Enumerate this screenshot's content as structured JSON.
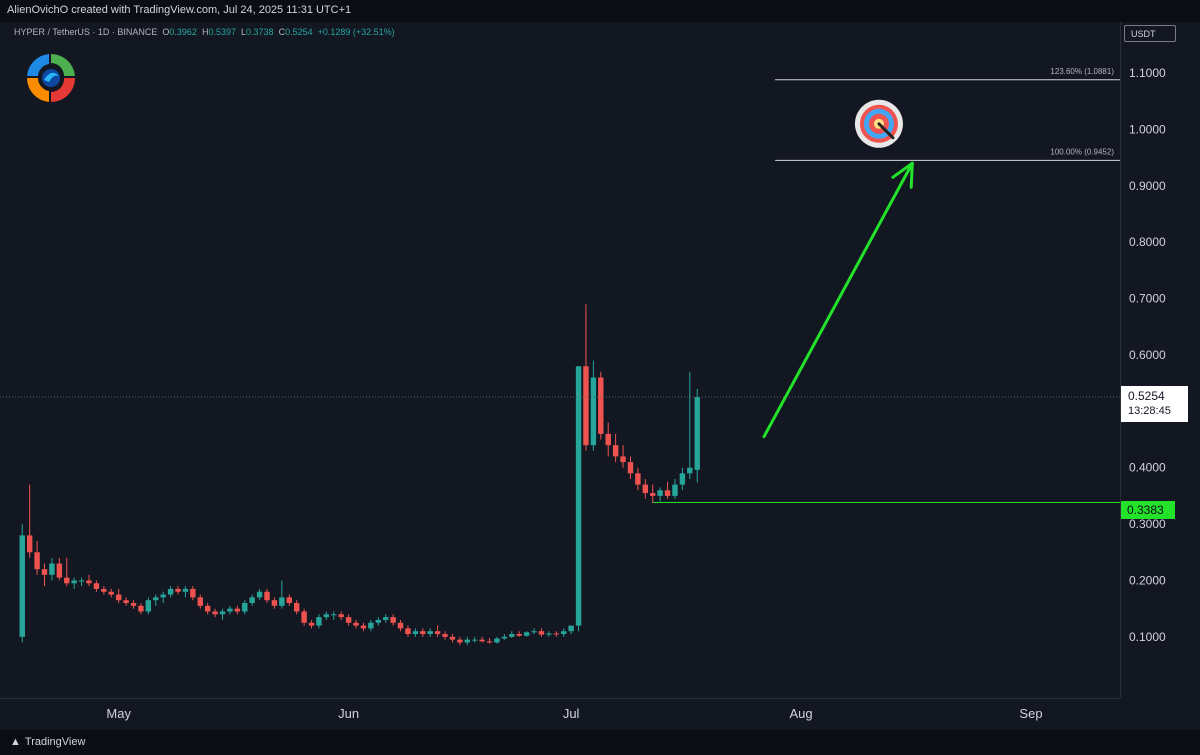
{
  "header": {
    "credit": "AlienOvichO created with TradingView.com, Jul 24, 2025 11:31 UTC+1",
    "symbol_line": "HYPER / TetherUS · 1D · BINANCE",
    "open_label": "O",
    "open": "0.3962",
    "high_label": "H",
    "high": "0.5397",
    "low_label": "L",
    "low": "0.3738",
    "close_label": "C",
    "close": "0.5254",
    "change": "+0.1289 (+32.51%)"
  },
  "price_axis": {
    "currency": "USDT",
    "last_price": "0.5254",
    "countdown": "13:28:45",
    "support_price": "0.3383"
  },
  "footer": {
    "brand": "TradingView"
  },
  "colors": {
    "up": "#26a69a",
    "down": "#ef5350",
    "arrow": "#22e22a",
    "support": "#22e22a",
    "background": "#131722"
  },
  "chart_data": {
    "type": "candlestick",
    "y_ticks": [
      "1.1000",
      "1.0000",
      "0.9000",
      "0.8000",
      "0.7000",
      "0.6000",
      "0.5000",
      "0.4000",
      "0.3000",
      "0.2000",
      "0.1000"
    ],
    "ylim": [
      0.027,
      1.148
    ],
    "x_ticks": [
      {
        "label": "May",
        "day": 13
      },
      {
        "label": "Jun",
        "day": 44
      },
      {
        "label": "Jul",
        "day": 74
      },
      {
        "label": "Aug",
        "day": 105
      },
      {
        "label": "Sep",
        "day": 136
      }
    ],
    "x_range_days": [
      -3,
      148
    ],
    "fib_levels": [
      {
        "label": "123.60% (1.0881)",
        "price": 1.0881
      },
      {
        "label": "100.00% (0.9452)",
        "price": 0.9452
      }
    ],
    "support_level": 0.3383,
    "last_price_level": 0.5254,
    "projection_arrow": {
      "from": {
        "day": 100,
        "price": 0.455
      },
      "to": {
        "day": 120,
        "price": 0.94
      }
    },
    "target_icon": "bullseye-icon",
    "candles": [
      {
        "o": 0.1,
        "h": 0.3,
        "l": 0.09,
        "c": 0.28
      },
      {
        "o": 0.28,
        "h": 0.37,
        "l": 0.24,
        "c": 0.25
      },
      {
        "o": 0.25,
        "h": 0.27,
        "l": 0.21,
        "c": 0.22
      },
      {
        "o": 0.22,
        "h": 0.23,
        "l": 0.19,
        "c": 0.21
      },
      {
        "o": 0.21,
        "h": 0.24,
        "l": 0.2,
        "c": 0.23
      },
      {
        "o": 0.23,
        "h": 0.24,
        "l": 0.2,
        "c": 0.205
      },
      {
        "o": 0.205,
        "h": 0.24,
        "l": 0.19,
        "c": 0.195
      },
      {
        "o": 0.195,
        "h": 0.205,
        "l": 0.185,
        "c": 0.2
      },
      {
        "o": 0.2,
        "h": 0.205,
        "l": 0.19,
        "c": 0.2
      },
      {
        "o": 0.2,
        "h": 0.21,
        "l": 0.19,
        "c": 0.195
      },
      {
        "o": 0.195,
        "h": 0.2,
        "l": 0.18,
        "c": 0.185
      },
      {
        "o": 0.185,
        "h": 0.19,
        "l": 0.175,
        "c": 0.18
      },
      {
        "o": 0.18,
        "h": 0.185,
        "l": 0.17,
        "c": 0.175
      },
      {
        "o": 0.175,
        "h": 0.185,
        "l": 0.16,
        "c": 0.165
      },
      {
        "o": 0.165,
        "h": 0.17,
        "l": 0.155,
        "c": 0.16
      },
      {
        "o": 0.16,
        "h": 0.165,
        "l": 0.15,
        "c": 0.155
      },
      {
        "o": 0.155,
        "h": 0.16,
        "l": 0.14,
        "c": 0.145
      },
      {
        "o": 0.145,
        "h": 0.17,
        "l": 0.14,
        "c": 0.165
      },
      {
        "o": 0.165,
        "h": 0.175,
        "l": 0.155,
        "c": 0.17
      },
      {
        "o": 0.17,
        "h": 0.18,
        "l": 0.16,
        "c": 0.175
      },
      {
        "o": 0.175,
        "h": 0.19,
        "l": 0.17,
        "c": 0.185
      },
      {
        "o": 0.185,
        "h": 0.19,
        "l": 0.175,
        "c": 0.18
      },
      {
        "o": 0.18,
        "h": 0.19,
        "l": 0.17,
        "c": 0.185
      },
      {
        "o": 0.185,
        "h": 0.19,
        "l": 0.165,
        "c": 0.17
      },
      {
        "o": 0.17,
        "h": 0.175,
        "l": 0.15,
        "c": 0.155
      },
      {
        "o": 0.155,
        "h": 0.16,
        "l": 0.14,
        "c": 0.145
      },
      {
        "o": 0.145,
        "h": 0.15,
        "l": 0.135,
        "c": 0.14
      },
      {
        "o": 0.14,
        "h": 0.15,
        "l": 0.13,
        "c": 0.145
      },
      {
        "o": 0.145,
        "h": 0.155,
        "l": 0.14,
        "c": 0.15
      },
      {
        "o": 0.15,
        "h": 0.155,
        "l": 0.14,
        "c": 0.145
      },
      {
        "o": 0.145,
        "h": 0.165,
        "l": 0.14,
        "c": 0.16
      },
      {
        "o": 0.16,
        "h": 0.175,
        "l": 0.155,
        "c": 0.17
      },
      {
        "o": 0.17,
        "h": 0.185,
        "l": 0.165,
        "c": 0.18
      },
      {
        "o": 0.18,
        "h": 0.185,
        "l": 0.16,
        "c": 0.165
      },
      {
        "o": 0.165,
        "h": 0.17,
        "l": 0.15,
        "c": 0.155
      },
      {
        "o": 0.155,
        "h": 0.2,
        "l": 0.15,
        "c": 0.17
      },
      {
        "o": 0.17,
        "h": 0.175,
        "l": 0.155,
        "c": 0.16
      },
      {
        "o": 0.16,
        "h": 0.165,
        "l": 0.14,
        "c": 0.145
      },
      {
        "o": 0.145,
        "h": 0.15,
        "l": 0.12,
        "c": 0.125
      },
      {
        "o": 0.125,
        "h": 0.13,
        "l": 0.115,
        "c": 0.12
      },
      {
        "o": 0.12,
        "h": 0.14,
        "l": 0.115,
        "c": 0.135
      },
      {
        "o": 0.135,
        "h": 0.145,
        "l": 0.13,
        "c": 0.14
      },
      {
        "o": 0.14,
        "h": 0.145,
        "l": 0.13,
        "c": 0.14
      },
      {
        "o": 0.14,
        "h": 0.145,
        "l": 0.13,
        "c": 0.135
      },
      {
        "o": 0.135,
        "h": 0.14,
        "l": 0.12,
        "c": 0.125
      },
      {
        "o": 0.125,
        "h": 0.13,
        "l": 0.115,
        "c": 0.12
      },
      {
        "o": 0.12,
        "h": 0.125,
        "l": 0.11,
        "c": 0.115
      },
      {
        "o": 0.115,
        "h": 0.13,
        "l": 0.11,
        "c": 0.125
      },
      {
        "o": 0.125,
        "h": 0.135,
        "l": 0.12,
        "c": 0.13
      },
      {
        "o": 0.13,
        "h": 0.14,
        "l": 0.125,
        "c": 0.135
      },
      {
        "o": 0.135,
        "h": 0.14,
        "l": 0.12,
        "c": 0.125
      },
      {
        "o": 0.125,
        "h": 0.13,
        "l": 0.11,
        "c": 0.115
      },
      {
        "o": 0.115,
        "h": 0.12,
        "l": 0.1,
        "c": 0.105
      },
      {
        "o": 0.105,
        "h": 0.115,
        "l": 0.1,
        "c": 0.11
      },
      {
        "o": 0.11,
        "h": 0.115,
        "l": 0.1,
        "c": 0.105
      },
      {
        "o": 0.105,
        "h": 0.115,
        "l": 0.1,
        "c": 0.11
      },
      {
        "o": 0.11,
        "h": 0.12,
        "l": 0.1,
        "c": 0.105
      },
      {
        "o": 0.105,
        "h": 0.11,
        "l": 0.095,
        "c": 0.1
      },
      {
        "o": 0.1,
        "h": 0.105,
        "l": 0.09,
        "c": 0.095
      },
      {
        "o": 0.095,
        "h": 0.1,
        "l": 0.085,
        "c": 0.09
      },
      {
        "o": 0.09,
        "h": 0.1,
        "l": 0.085,
        "c": 0.095
      },
      {
        "o": 0.095,
        "h": 0.1,
        "l": 0.09,
        "c": 0.095
      },
      {
        "o": 0.095,
        "h": 0.1,
        "l": 0.09,
        "c": 0.092
      },
      {
        "o": 0.092,
        "h": 0.098,
        "l": 0.088,
        "c": 0.09
      },
      {
        "o": 0.09,
        "h": 0.1,
        "l": 0.088,
        "c": 0.097
      },
      {
        "o": 0.097,
        "h": 0.105,
        "l": 0.095,
        "c": 0.1
      },
      {
        "o": 0.1,
        "h": 0.11,
        "l": 0.098,
        "c": 0.105
      },
      {
        "o": 0.105,
        "h": 0.11,
        "l": 0.1,
        "c": 0.102
      },
      {
        "o": 0.102,
        "h": 0.11,
        "l": 0.1,
        "c": 0.108
      },
      {
        "o": 0.108,
        "h": 0.115,
        "l": 0.105,
        "c": 0.11
      },
      {
        "o": 0.11,
        "h": 0.115,
        "l": 0.1,
        "c": 0.104
      },
      {
        "o": 0.104,
        "h": 0.11,
        "l": 0.1,
        "c": 0.106
      },
      {
        "o": 0.106,
        "h": 0.11,
        "l": 0.1,
        "c": 0.105
      },
      {
        "o": 0.105,
        "h": 0.115,
        "l": 0.1,
        "c": 0.11
      },
      {
        "o": 0.11,
        "h": 0.12,
        "l": 0.105,
        "c": 0.12
      },
      {
        "o": 0.12,
        "h": 0.58,
        "l": 0.11,
        "c": 0.58
      },
      {
        "o": 0.58,
        "h": 0.69,
        "l": 0.43,
        "c": 0.44
      },
      {
        "o": 0.44,
        "h": 0.59,
        "l": 0.43,
        "c": 0.56
      },
      {
        "o": 0.56,
        "h": 0.57,
        "l": 0.45,
        "c": 0.46
      },
      {
        "o": 0.46,
        "h": 0.48,
        "l": 0.42,
        "c": 0.44
      },
      {
        "o": 0.44,
        "h": 0.46,
        "l": 0.41,
        "c": 0.42
      },
      {
        "o": 0.42,
        "h": 0.44,
        "l": 0.4,
        "c": 0.41
      },
      {
        "o": 0.41,
        "h": 0.42,
        "l": 0.38,
        "c": 0.39
      },
      {
        "o": 0.39,
        "h": 0.4,
        "l": 0.36,
        "c": 0.37
      },
      {
        "o": 0.37,
        "h": 0.38,
        "l": 0.345,
        "c": 0.355
      },
      {
        "o": 0.355,
        "h": 0.37,
        "l": 0.338,
        "c": 0.35
      },
      {
        "o": 0.35,
        "h": 0.365,
        "l": 0.34,
        "c": 0.36
      },
      {
        "o": 0.36,
        "h": 0.375,
        "l": 0.345,
        "c": 0.35
      },
      {
        "o": 0.35,
        "h": 0.38,
        "l": 0.345,
        "c": 0.37
      },
      {
        "o": 0.37,
        "h": 0.4,
        "l": 0.36,
        "c": 0.39
      },
      {
        "o": 0.39,
        "h": 0.57,
        "l": 0.38,
        "c": 0.4
      },
      {
        "o": 0.3962,
        "h": 0.5397,
        "l": 0.3738,
        "c": 0.5254
      }
    ]
  }
}
